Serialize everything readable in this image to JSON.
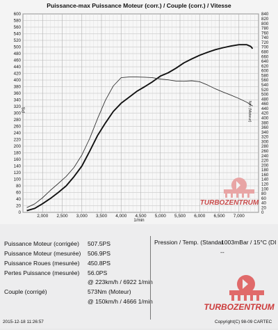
{
  "chart_data": {
    "type": "line",
    "title": "Puissance-max Puissance Moteur (corr.) / Couple (corr.) / Vitesse",
    "xlabel": "1/min",
    "ylabel_left": "PS",
    "ylabel_right": "Nm (Moteur)",
    "xlim": [
      1500,
      7500
    ],
    "ylim_left": [
      0,
      600
    ],
    "ylim_right": [
      0,
      840
    ],
    "x_ticks": [
      "2,000",
      "2,500",
      "3,000",
      "3,500",
      "4,000",
      "4,500",
      "5,000",
      "5,500",
      "6,000",
      "6,500",
      "7,000"
    ],
    "x_tick_values": [
      2000,
      2500,
      3000,
      3500,
      4000,
      4500,
      5000,
      5500,
      6000,
      6500,
      7000
    ],
    "y_ticks_left": [
      0,
      20,
      40,
      60,
      80,
      100,
      120,
      140,
      160,
      180,
      200,
      220,
      240,
      260,
      280,
      300,
      320,
      340,
      360,
      380,
      400,
      420,
      440,
      460,
      480,
      500,
      520,
      540,
      560,
      580,
      600
    ],
    "y_ticks_right": [
      0,
      20,
      40,
      60,
      80,
      100,
      120,
      140,
      160,
      180,
      200,
      220,
      240,
      260,
      280,
      300,
      320,
      340,
      360,
      380,
      400,
      420,
      440,
      460,
      480,
      500,
      520,
      540,
      560,
      580,
      600,
      620,
      640,
      660,
      680,
      700,
      720,
      740,
      760,
      780,
      800,
      820,
      840
    ],
    "grid": true,
    "series": [
      {
        "axis": "left",
        "color": "#111111",
        "points": [
          [
            1600,
            5
          ],
          [
            1800,
            12
          ],
          [
            2000,
            26
          ],
          [
            2200,
            42
          ],
          [
            2400,
            60
          ],
          [
            2600,
            80
          ],
          [
            2800,
            108
          ],
          [
            3000,
            140
          ],
          [
            3200,
            185
          ],
          [
            3400,
            232
          ],
          [
            3600,
            270
          ],
          [
            3800,
            305
          ],
          [
            4000,
            330
          ],
          [
            4200,
            348
          ],
          [
            4400,
            366
          ],
          [
            4600,
            380
          ],
          [
            4800,
            395
          ],
          [
            5000,
            412
          ],
          [
            5200,
            422
          ],
          [
            5400,
            436
          ],
          [
            5600,
            452
          ],
          [
            5800,
            464
          ],
          [
            6000,
            475
          ],
          [
            6200,
            484
          ],
          [
            6400,
            492
          ],
          [
            6600,
            498
          ],
          [
            6800,
            503
          ],
          [
            7000,
            507
          ],
          [
            7200,
            507
          ],
          [
            7300,
            502
          ],
          [
            7350,
            495
          ]
        ]
      },
      {
        "axis": "right",
        "color": "#333333",
        "points": [
          [
            1600,
            20
          ],
          [
            1800,
            36
          ],
          [
            2000,
            62
          ],
          [
            2200,
            93
          ],
          [
            2400,
            122
          ],
          [
            2600,
            152
          ],
          [
            2800,
            190
          ],
          [
            3000,
            243
          ],
          [
            3200,
            313
          ],
          [
            3400,
            396
          ],
          [
            3600,
            474
          ],
          [
            3800,
            535
          ],
          [
            4000,
            570
          ],
          [
            4200,
            573
          ],
          [
            4400,
            573
          ],
          [
            4600,
            572
          ],
          [
            4800,
            570
          ],
          [
            5000,
            564
          ],
          [
            5200,
            561
          ],
          [
            5400,
            556
          ],
          [
            5600,
            555
          ],
          [
            5800,
            557
          ],
          [
            6000,
            553
          ],
          [
            6200,
            539
          ],
          [
            6400,
            523
          ],
          [
            6600,
            509
          ],
          [
            6800,
            496
          ],
          [
            7000,
            482
          ],
          [
            7200,
            466
          ],
          [
            7350,
            450
          ]
        ]
      }
    ]
  },
  "results": {
    "rows": [
      {
        "label": "Puissance Moteur (corrigée)",
        "value": "507.5PS"
      },
      {
        "label": "Puissance Moteur (mesurée)",
        "value": "506.9PS"
      },
      {
        "label": "Puissance Roues (mesurée)",
        "value": "450.8PS"
      },
      {
        "label": "Pertes Puissance (mesurée)",
        "value": "56.0PS"
      },
      {
        "label": "",
        "value": "@ 223km/h / 6922 1/min"
      },
      {
        "label": "Couple (corrigé)",
        "value": "573Nm (Moteur)"
      },
      {
        "label": "",
        "value": "@ 150km/h / 4666 1/min"
      }
    ],
    "pressure_label": "Pression / Temp. (Standar",
    "pressure_value": "1003mBar / 15°C",
    "pressure_extra": "(DI",
    "pressure_dash": "--",
    "timestamp": "2015-12-18 11:26:57",
    "copyright": "Copyright(C) 98-09 CARTEC",
    "watermark_text": "TURBOZENTRUM"
  }
}
